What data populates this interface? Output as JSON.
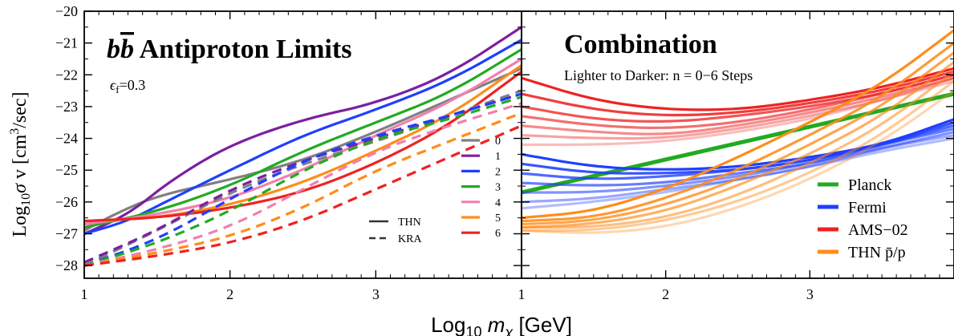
{
  "chart_data": [
    {
      "type": "line",
      "title": "bb̄ Antiproton Limits",
      "annotation": "ϵf=0.3",
      "xlabel": "Log10 mχ [GeV]",
      "ylabel": "Log10σ v [cm3/sec]",
      "xlim": [
        1,
        4
      ],
      "ylim": [
        -28.4,
        -20
      ],
      "xticks": [
        "1",
        "2",
        "3"
      ],
      "yticks": [
        "−20",
        "−21",
        "−22",
        "−23",
        "−24",
        "−25",
        "−26",
        "−27",
        "−28"
      ],
      "legend_steps": [
        "0",
        "1",
        "2",
        "3",
        "4",
        "5",
        "6"
      ],
      "legend_styles": [
        {
          "label": "THN",
          "dash": "solid"
        },
        {
          "label": "KRA",
          "dash": "dashed"
        }
      ],
      "colors": [
        "#808080",
        "#7b1fa2",
        "#1f3fff",
        "#22aa22",
        "#f080b0",
        "#ff8c1a",
        "#ee2222"
      ],
      "series": [
        {
          "name": "0",
          "style": "THN",
          "x": [
            1,
            1.2,
            1.5,
            2,
            2.5,
            3,
            3.5,
            4
          ],
          "y": [
            -26.9,
            -26.4,
            -25.8,
            -25.3,
            -24.7,
            -23.8,
            -22.8,
            -21.8
          ]
        },
        {
          "name": "1",
          "style": "THN",
          "x": [
            1,
            1.3,
            1.6,
            2,
            2.5,
            3,
            3.5,
            4
          ],
          "y": [
            -27.0,
            -26.4,
            -25.3,
            -24.2,
            -23.4,
            -22.9,
            -22.0,
            -20.5
          ]
        },
        {
          "name": "2",
          "style": "THN",
          "x": [
            1,
            1.3,
            1.6,
            2,
            2.5,
            3,
            3.5,
            4
          ],
          "y": [
            -27.0,
            -26.6,
            -25.9,
            -25.0,
            -23.9,
            -23.1,
            -22.2,
            -20.9
          ]
        },
        {
          "name": "3",
          "style": "THN",
          "x": [
            1,
            1.5,
            2,
            2.5,
            3,
            3.5,
            4
          ],
          "y": [
            -26.8,
            -26.3,
            -25.5,
            -24.4,
            -23.5,
            -22.6,
            -21.2
          ]
        },
        {
          "name": "4",
          "style": "THN",
          "x": [
            1,
            1.5,
            2,
            2.5,
            3,
            3.5,
            4
          ],
          "y": [
            -26.7,
            -26.4,
            -25.9,
            -25.0,
            -23.9,
            -22.9,
            -21.5
          ]
        },
        {
          "name": "5",
          "style": "THN",
          "x": [
            1,
            1.5,
            2,
            2.5,
            3,
            3.5,
            4
          ],
          "y": [
            -26.6,
            -26.5,
            -26.1,
            -25.4,
            -24.4,
            -23.3,
            -21.7
          ]
        },
        {
          "name": "6",
          "style": "THN",
          "x": [
            1,
            1.5,
            2,
            2.5,
            3,
            3.5,
            4
          ],
          "y": [
            -26.6,
            -26.5,
            -26.2,
            -25.7,
            -24.8,
            -23.6,
            -21.9
          ]
        },
        {
          "name": "0",
          "style": "KRA",
          "x": [
            1,
            1.5,
            2,
            2.5,
            3,
            3.5,
            4
          ],
          "y": [
            -28.0,
            -26.9,
            -25.7,
            -24.8,
            -24.1,
            -23.3,
            -22.5
          ]
        },
        {
          "name": "1",
          "style": "KRA",
          "x": [
            1,
            1.5,
            2,
            2.5,
            3,
            3.5,
            4
          ],
          "y": [
            -27.9,
            -26.9,
            -25.6,
            -24.7,
            -24.0,
            -23.3,
            -22.6
          ]
        },
        {
          "name": "2",
          "style": "KRA",
          "x": [
            1,
            1.5,
            2,
            2.5,
            3,
            3.5,
            4
          ],
          "y": [
            -28.0,
            -27.2,
            -25.9,
            -24.7,
            -23.9,
            -23.3,
            -22.6
          ]
        },
        {
          "name": "3",
          "style": "KRA",
          "x": [
            1,
            1.5,
            2,
            2.5,
            3,
            3.5,
            4
          ],
          "y": [
            -28.0,
            -27.3,
            -26.3,
            -25.0,
            -24.0,
            -23.4,
            -22.7
          ]
        },
        {
          "name": "4",
          "style": "KRA",
          "x": [
            1,
            1.5,
            2,
            2.5,
            3,
            3.5,
            4
          ],
          "y": [
            -28.0,
            -27.5,
            -26.8,
            -25.6,
            -24.4,
            -23.6,
            -22.9
          ]
        },
        {
          "name": "5",
          "style": "KRA",
          "x": [
            1,
            1.5,
            2,
            2.5,
            3,
            3.5,
            4
          ],
          "y": [
            -28.0,
            -27.6,
            -27.1,
            -26.2,
            -25.0,
            -24.1,
            -23.2
          ]
        },
        {
          "name": "6",
          "style": "KRA",
          "x": [
            1,
            1.5,
            2,
            2.5,
            3,
            3.5,
            4
          ],
          "y": [
            -28.0,
            -27.7,
            -27.3,
            -26.6,
            -25.6,
            -24.6,
            -23.6
          ]
        }
      ]
    },
    {
      "type": "line",
      "title": "Combination",
      "annotation": "Lighter to Darker: n = 0−6 Steps",
      "xlabel": "Log10 mχ [GeV]",
      "xlim": [
        1,
        4
      ],
      "ylim": [
        -28.4,
        -20
      ],
      "xticks": [
        "1",
        "2",
        "3"
      ],
      "legend": [
        {
          "label": "Planck",
          "color": "#22aa22"
        },
        {
          "label": "Fermi",
          "color": "#1f3fff"
        },
        {
          "label": "AMS−02",
          "color": "#ee2222"
        },
        {
          "label": "THN p̄/p",
          "color": "#ff8c1a"
        }
      ],
      "series": [
        {
          "name": "Planck",
          "color": "#22aa22",
          "x": [
            1,
            4
          ],
          "y": [
            -25.7,
            -22.6
          ]
        },
        {
          "name": "Fermi",
          "color": "#1f3fff",
          "x": [
            1,
            1.5,
            2,
            2.5,
            3,
            3.5,
            4
          ],
          "y": [
            -24.5,
            -24.9,
            -25.0,
            -24.9,
            -24.6,
            -24.2,
            -23.4
          ]
        },
        {
          "name": "Fermi",
          "color": "#1f3fff",
          "x": [
            1,
            1.5,
            2,
            2.5,
            3,
            3.5,
            4
          ],
          "y": [
            -24.8,
            -25.1,
            -25.1,
            -25.0,
            -24.7,
            -24.2,
            -23.5
          ]
        },
        {
          "name": "Fermi",
          "color": "#1f3fff",
          "x": [
            1,
            1.5,
            2,
            2.5,
            3,
            3.5,
            4
          ],
          "y": [
            -25.1,
            -25.3,
            -25.2,
            -25.0,
            -24.7,
            -24.2,
            -23.6
          ]
        },
        {
          "name": "Fermi",
          "color": "#1f3fff",
          "x": [
            1,
            1.5,
            2,
            2.5,
            3,
            3.5,
            4
          ],
          "y": [
            -25.4,
            -25.5,
            -25.4,
            -25.1,
            -24.8,
            -24.2,
            -23.7
          ]
        },
        {
          "name": "Fermi",
          "color": "#1f3fff",
          "x": [
            1,
            1.5,
            2,
            2.5,
            3,
            3.5,
            4
          ],
          "y": [
            -25.7,
            -25.7,
            -25.5,
            -25.2,
            -24.8,
            -24.3,
            -23.8
          ]
        },
        {
          "name": "Fermi",
          "color": "#1f3fff",
          "x": [
            1,
            1.5,
            2,
            2.5,
            3,
            3.5,
            4
          ],
          "y": [
            -26.0,
            -25.9,
            -25.6,
            -25.3,
            -24.9,
            -24.3,
            -23.9
          ]
        },
        {
          "name": "Fermi",
          "color": "#1f3fff",
          "x": [
            1,
            1.5,
            2,
            2.5,
            3,
            3.5,
            4
          ],
          "y": [
            -26.2,
            -26.0,
            -25.7,
            -25.3,
            -24.9,
            -24.4,
            -24.0
          ]
        },
        {
          "name": "AMS−02",
          "color": "#ee2222",
          "x": [
            1,
            1.5,
            2,
            2.5,
            3,
            3.5,
            4
          ],
          "y": [
            -22.1,
            -22.8,
            -23.1,
            -23.1,
            -22.8,
            -22.4,
            -21.8
          ]
        },
        {
          "name": "AMS−02",
          "color": "#ee2222",
          "x": [
            1,
            1.5,
            2,
            2.5,
            3,
            3.5,
            4
          ],
          "y": [
            -22.6,
            -23.1,
            -23.3,
            -23.2,
            -22.9,
            -22.5,
            -21.9
          ]
        },
        {
          "name": "AMS−02",
          "color": "#ee2222",
          "x": [
            1,
            1.5,
            2,
            2.5,
            3,
            3.5,
            4
          ],
          "y": [
            -23.0,
            -23.4,
            -23.5,
            -23.3,
            -23.0,
            -22.6,
            -22.0
          ]
        },
        {
          "name": "AMS−02",
          "color": "#ee2222",
          "x": [
            1,
            1.5,
            2,
            2.5,
            3,
            3.5,
            4
          ],
          "y": [
            -23.3,
            -23.6,
            -23.7,
            -23.5,
            -23.1,
            -22.6,
            -22.0
          ]
        },
        {
          "name": "AMS−02",
          "color": "#ee2222",
          "x": [
            1,
            1.5,
            2,
            2.5,
            3,
            3.5,
            4
          ],
          "y": [
            -23.6,
            -23.8,
            -23.9,
            -23.6,
            -23.2,
            -22.7,
            -22.1
          ]
        },
        {
          "name": "AMS−02",
          "color": "#ee2222",
          "x": [
            1,
            1.5,
            2,
            2.5,
            3,
            3.5,
            4
          ],
          "y": [
            -23.9,
            -24.0,
            -24.0,
            -23.7,
            -23.3,
            -22.8,
            -22.1
          ]
        },
        {
          "name": "AMS−02",
          "color": "#ee2222",
          "x": [
            1,
            1.5,
            2,
            2.5,
            3,
            3.5,
            4
          ],
          "y": [
            -24.2,
            -24.2,
            -24.1,
            -23.8,
            -23.4,
            -22.8,
            -22.2
          ]
        },
        {
          "name": "THN p̄/p",
          "color": "#ff8c1a",
          "x": [
            1,
            1.5,
            2,
            2.5,
            3,
            3.5,
            4
          ],
          "y": [
            -26.5,
            -26.3,
            -25.6,
            -24.6,
            -23.5,
            -22.3,
            -20.6
          ]
        },
        {
          "name": "THN p̄/p",
          "color": "#ff8c1a",
          "x": [
            1,
            1.5,
            2,
            2.5,
            3,
            3.5,
            4
          ],
          "y": [
            -26.6,
            -26.5,
            -25.9,
            -25.0,
            -23.9,
            -22.7,
            -21.0
          ]
        },
        {
          "name": "THN p̄/p",
          "color": "#ff8c1a",
          "x": [
            1,
            1.5,
            2,
            2.5,
            3,
            3.5,
            4
          ],
          "y": [
            -26.7,
            -26.6,
            -26.1,
            -25.3,
            -24.2,
            -23.0,
            -21.3
          ]
        },
        {
          "name": "THN p̄/p",
          "color": "#ff8c1a",
          "x": [
            1,
            1.5,
            2,
            2.5,
            3,
            3.5,
            4
          ],
          "y": [
            -26.8,
            -26.7,
            -26.3,
            -25.5,
            -24.5,
            -23.3,
            -21.6
          ]
        },
        {
          "name": "THN p̄/p",
          "color": "#ff8c1a",
          "x": [
            1,
            1.5,
            2,
            2.5,
            3,
            3.5,
            4
          ],
          "y": [
            -26.8,
            -26.8,
            -26.5,
            -25.8,
            -24.8,
            -23.6,
            -21.9
          ]
        },
        {
          "name": "THN p̄/p",
          "color": "#ff8c1a",
          "x": [
            1,
            1.5,
            2,
            2.5,
            3,
            3.5,
            4
          ],
          "y": [
            -26.9,
            -26.9,
            -26.6,
            -26.0,
            -25.1,
            -23.9,
            -22.2
          ]
        },
        {
          "name": "THN p̄/p",
          "color": "#ff8c1a",
          "x": [
            1,
            1.5,
            2,
            2.5,
            3,
            3.5,
            4
          ],
          "y": [
            -26.9,
            -27.0,
            -26.8,
            -26.2,
            -25.3,
            -24.1,
            -22.5
          ]
        }
      ]
    }
  ]
}
